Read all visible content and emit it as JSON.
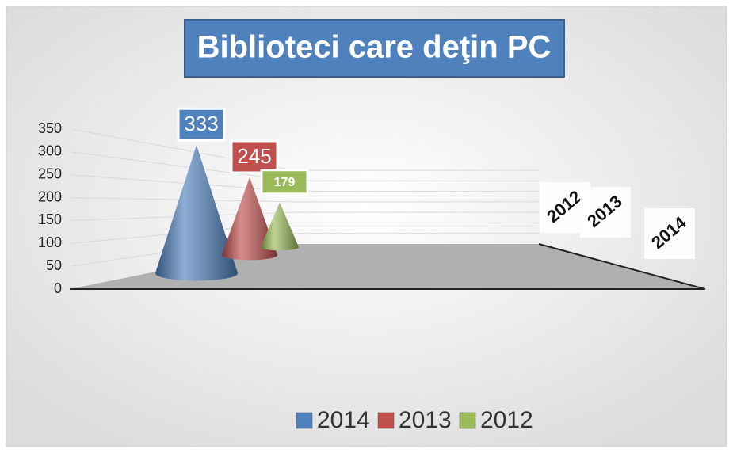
{
  "chart_data": {
    "type": "cone3d",
    "title": "Biblioteci care deţin PC",
    "categories": [
      null
    ],
    "series": [
      {
        "name": "2014",
        "color": "#4f81bd",
        "values": [
          333
        ]
      },
      {
        "name": "2013",
        "color": "#c0504d",
        "values": [
          245
        ]
      },
      {
        "name": "2012",
        "color": "#9bbb59",
        "values": [
          179
        ]
      }
    ],
    "ylim": [
      0,
      350
    ],
    "yticks": [
      0,
      50,
      100,
      150,
      200,
      250,
      300,
      350
    ],
    "grid": true,
    "legend": "bottom"
  }
}
